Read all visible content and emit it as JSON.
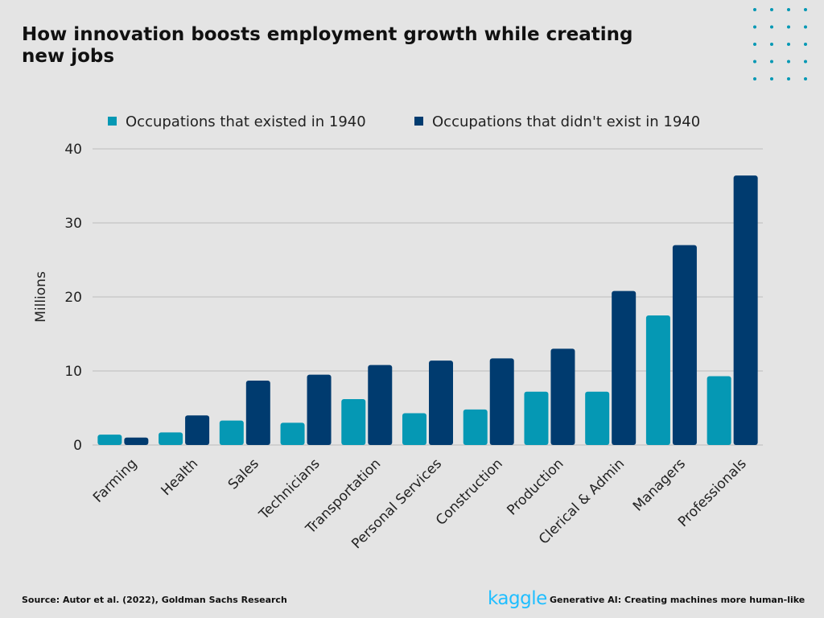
{
  "title": "How innovation boosts employment growth while creating new jobs",
  "colors": {
    "background": "#e4e4e4",
    "existed": "#0598b4",
    "new": "#003b6f",
    "grid": "#bdbdbd",
    "dots": "#0598b4",
    "kaggle": "#20beff"
  },
  "chart_data": {
    "type": "bar",
    "ylabel": "Millions",
    "xlabel": "",
    "ylim": [
      0,
      40
    ],
    "yticks": [
      0,
      10,
      20,
      30,
      40
    ],
    "grid": true,
    "legend_position": "top",
    "categories": [
      "Farming",
      "Health",
      "Sales",
      "Technicians",
      "Transportation",
      "Personal Services",
      "Construction",
      "Production",
      "Clerical & Admin",
      "Managers",
      "Professionals"
    ],
    "series": [
      {
        "name": "Occupations that existed in 1940",
        "values": [
          1.4,
          1.7,
          3.3,
          3.0,
          6.2,
          4.3,
          4.8,
          7.2,
          7.2,
          17.5,
          9.3
        ]
      },
      {
        "name": "Occupations that didn't exist in 1940",
        "values": [
          1.0,
          4.0,
          8.7,
          9.5,
          10.8,
          11.4,
          11.7,
          13.0,
          20.8,
          27.0,
          36.4
        ]
      }
    ]
  },
  "footer": {
    "source": "Source: Autor et al.  (2022), Goldman Sachs Research",
    "logo": "kaggle",
    "caption": "Generative AI: Creating machines more human-like"
  }
}
